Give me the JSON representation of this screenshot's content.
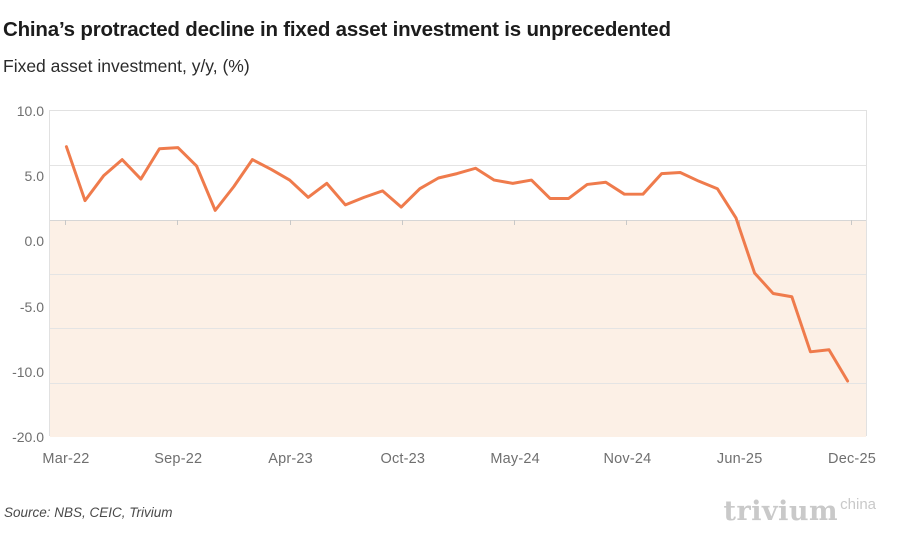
{
  "header": {
    "title": "China’s protracted decline in fixed asset investment is unprecedented",
    "subtitle": "Fixed asset investment, y/y, (%)"
  },
  "footer": {
    "source": "Source: NBS, CEIC, Trivium",
    "logo_text": "trivium",
    "logo_superscript": "china"
  },
  "chart_data": {
    "type": "line",
    "title": "China’s protracted decline in fixed asset investment is unprecedented",
    "subtitle": "Fixed asset investment, y/y, (%)",
    "series_name": "Fixed asset investment, y/y (%)",
    "x": [
      "Mar-22",
      "Apr-22",
      "May-22",
      "Jun-22",
      "Jul-22",
      "Aug-22",
      "Sep-22",
      "Oct-22",
      "Nov-22",
      "Dec-22",
      "Feb-23",
      "Mar-23",
      "Apr-23",
      "May-23",
      "Jun-23",
      "Jul-23",
      "Aug-23",
      "Sep-23",
      "Oct-23",
      "Nov-23",
      "Dec-23",
      "Feb-24",
      "Mar-24",
      "Apr-24",
      "May-24",
      "Jun-24",
      "Jul-24",
      "Aug-24",
      "Sep-24",
      "Oct-24",
      "Nov-24",
      "Dec-24",
      "Feb-25",
      "Mar-25",
      "Apr-25",
      "May-25",
      "Jun-25",
      "Jul-25",
      "Aug-25",
      "Sep-25",
      "Oct-25",
      "Nov-25",
      "Dec-25"
    ],
    "values": [
      6.7,
      1.7,
      4.0,
      5.5,
      3.7,
      6.5,
      6.6,
      4.9,
      0.8,
      3.0,
      5.5,
      4.6,
      3.6,
      2.0,
      3.3,
      1.3,
      2.0,
      2.6,
      1.1,
      2.8,
      3.8,
      4.2,
      4.7,
      3.6,
      3.3,
      3.6,
      1.9,
      1.9,
      3.2,
      3.4,
      2.3,
      2.3,
      4.2,
      4.3,
      3.5,
      2.8,
      0.1,
      -5.0,
      -6.9,
      -7.2,
      -12.3,
      -12.1,
      -15.0
    ],
    "x_tick_labels": [
      "Mar-22",
      "Sep-22",
      "Apr-23",
      "Oct-23",
      "May-24",
      "Nov-24",
      "Jun-25",
      "Dec-25"
    ],
    "x_tick_every": 6,
    "y_axis_labels": [
      "10.0",
      "5.0",
      "0.0",
      "-5.0",
      "-10.0",
      "-20.0"
    ],
    "ylim": [
      -20,
      10
    ],
    "gridline_values": [
      10,
      5,
      0,
      -5,
      -10,
      -15,
      -20
    ],
    "shade_below_value": 0,
    "grid": true,
    "legend_position": "none",
    "line_color": "#ef7b4c",
    "negative_shade_color": "#fcf0e6",
    "gridline_color": "#e4e4e4",
    "zero_line_color": "#d6d6d6",
    "axis_label_color": "#6f6f6f"
  }
}
